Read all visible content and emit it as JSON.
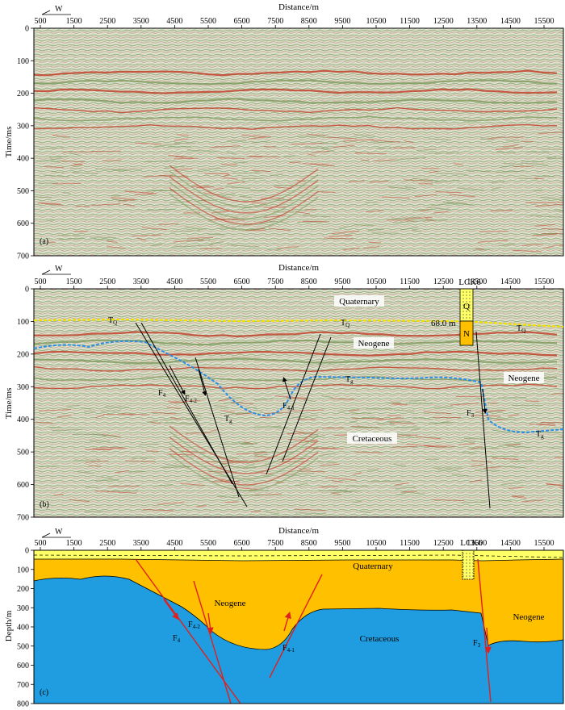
{
  "panels": [
    {
      "id": "a",
      "panel_label": "(a)",
      "direction": "W",
      "x_title": "Distance/m",
      "y_title": "Time/ms",
      "x_ticks": [
        "500",
        "1500",
        "2500",
        "3500",
        "4500",
        "5500",
        "6500",
        "7500",
        "8500",
        "9500",
        "10500",
        "11500",
        "12500",
        "13500",
        "14500",
        "15500"
      ],
      "y_ticks": [
        "0",
        "100",
        "200",
        "300",
        "400",
        "500",
        "600",
        "700"
      ]
    },
    {
      "id": "b",
      "panel_label": "(b)",
      "direction": "W",
      "x_title": "Distance/m",
      "y_title": "Time/ms",
      "well": "LCK6",
      "well_depth_label": "68.0 m",
      "well_units": [
        "Q",
        "N"
      ],
      "x_ticks": [
        "500",
        "1500",
        "2500",
        "3500",
        "4500",
        "5500",
        "6500",
        "7500",
        "8500",
        "9500",
        "10500",
        "11500",
        "12500",
        "13500",
        "14500",
        "15500"
      ],
      "y_ticks": [
        "0",
        "100",
        "200",
        "300",
        "400",
        "500",
        "600",
        "700"
      ],
      "labels": {
        "quaternary": "Quaternary",
        "neogene_mid": "Neogene",
        "neogene_right": "Neogene",
        "cretaceous": "Cretaceous"
      },
      "horizons": {
        "tq_1": "TQ",
        "tq_2": "TQ",
        "tq_3": "TQ",
        "tg_1": "Tg",
        "tg_2": "Tg",
        "tg_3": "Tg"
      },
      "faults": {
        "f4": "F4",
        "f42": "F4-2",
        "f41": "F4-1",
        "f3": "F3"
      }
    },
    {
      "id": "c",
      "panel_label": "(c)",
      "direction": "W",
      "x_title": "Distance/m",
      "y_title": "Depth/m",
      "well": "LCK6",
      "x_ticks": [
        "500",
        "1500",
        "2500",
        "3500",
        "4500",
        "5500",
        "6500",
        "7500",
        "8500",
        "9500",
        "10500",
        "11500",
        "12500",
        "13500",
        "14500",
        "15500"
      ],
      "y_ticks": [
        "0",
        "100",
        "200",
        "300",
        "400",
        "500",
        "600",
        "700",
        "800"
      ],
      "labels": {
        "quaternary": "Quaternary",
        "neogene_left": "Neogene",
        "neogene_right": "Neogene",
        "cretaceous": "Cretaceous"
      },
      "faults": {
        "f4": "F4",
        "f42": "F4-2",
        "f41": "F4-1",
        "f3": "F3"
      }
    }
  ],
  "colors": {
    "seismic_bg": "#e6eede",
    "seismic_red": "#c03a24",
    "seismic_green": "#7d9a5c",
    "quaternary": "#ffff66",
    "neogene": "#ffc000",
    "cretaceous": "#1f9de0",
    "fault_red": "#e0201c",
    "tq_line": "#f0e000",
    "tg_line": "#2a8ee8"
  }
}
